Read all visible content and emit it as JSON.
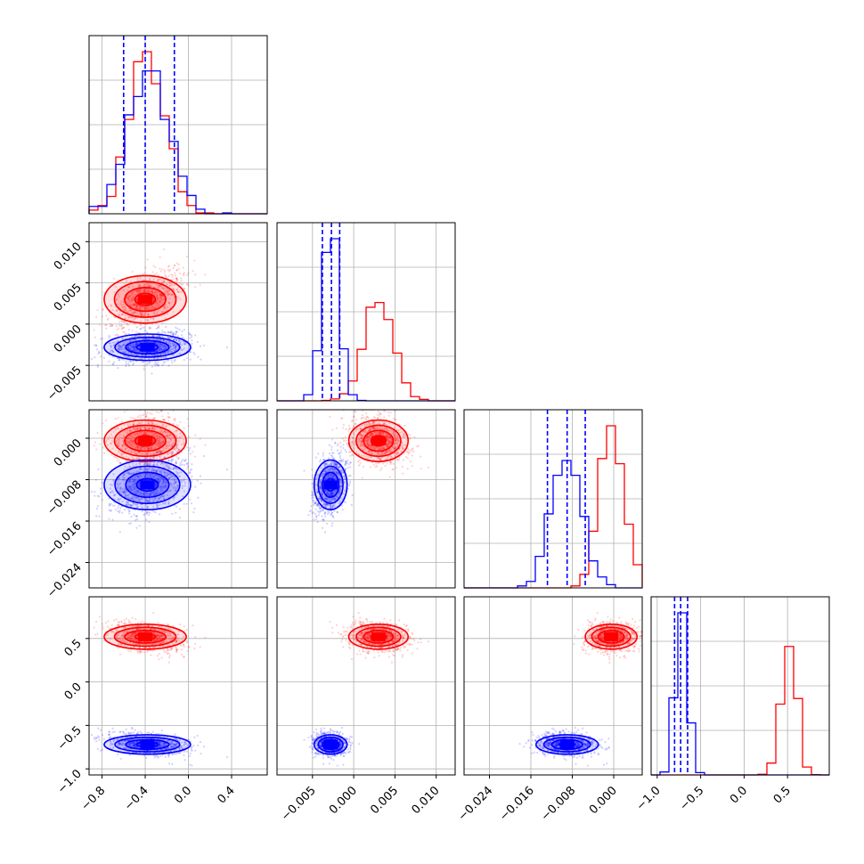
{
  "chart_data": {
    "type": "corner",
    "dims": 4,
    "colors": {
      "series_a": "#ff0000",
      "series_b": "#0000ff",
      "quantiles": "#0000ff",
      "grid": "#b0b0b0"
    },
    "grid": true,
    "axes": [
      {
        "range": [
          -0.92,
          0.73
        ],
        "ticks": [
          -0.8,
          -0.4,
          0.0,
          0.4
        ],
        "tick_labels": [
          "−0.8",
          "−0.4",
          "0.0",
          "0.4"
        ]
      },
      {
        "range": [
          -0.0093,
          0.0123
        ],
        "ticks": [
          -0.005,
          0.0,
          0.005,
          0.01
        ],
        "tick_labels": [
          "−0.005",
          "0.000",
          "0.005",
          "0.010"
        ]
      },
      {
        "range": [
          -0.0289,
          0.0055
        ],
        "ticks": [
          -0.024,
          -0.016,
          -0.008,
          0.0
        ],
        "tick_labels": [
          "−0.024",
          "−0.016",
          "−0.008",
          "0.000"
        ]
      },
      {
        "range": [
          -1.07,
          0.98
        ],
        "ticks": [
          -1.0,
          -0.5,
          0.0,
          0.5
        ],
        "tick_labels": [
          "−1.0",
          "−0.5",
          "0.0",
          "0.5"
        ]
      }
    ],
    "series": [
      {
        "color": "#ff0000",
        "mean": [
          -0.4,
          0.003,
          -0.0005,
          0.52
        ],
        "sd": [
          0.19,
          0.0018,
          0.0025,
          0.09
        ]
      },
      {
        "color": "#0000ff",
        "mean": [
          -0.38,
          -0.0028,
          -0.009,
          -0.72
        ],
        "sd": [
          0.2,
          0.001,
          0.003,
          0.07
        ]
      }
    ],
    "quantile_lines": [
      [
        -0.6,
        -0.4,
        -0.13
      ],
      [
        -0.0038,
        -0.0027,
        -0.0017
      ],
      [
        -0.0128,
        -0.009,
        -0.0055
      ],
      [
        -0.8,
        -0.73,
        -0.65
      ]
    ]
  }
}
